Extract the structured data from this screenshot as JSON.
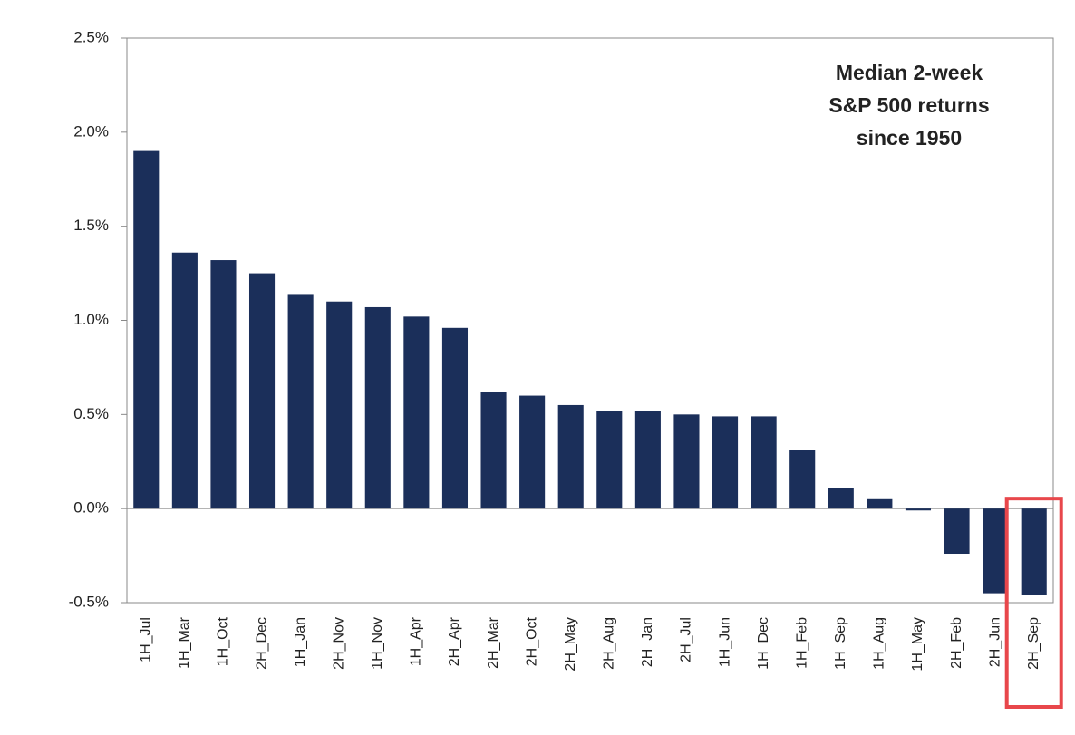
{
  "chart_data": {
    "type": "bar",
    "annotation": [
      "Median 2-week",
      "S&P 500 returns",
      "since 1950"
    ],
    "categories": [
      "1H_Jul",
      "1H_Mar",
      "1H_Oct",
      "2H_Dec",
      "1H_Jan",
      "2H_Nov",
      "1H_Nov",
      "1H_Apr",
      "2H_Apr",
      "2H_Mar",
      "2H_Oct",
      "2H_May",
      "2H_Aug",
      "2H_Jan",
      "2H_Jul",
      "1H_Jun",
      "1H_Dec",
      "1H_Feb",
      "1H_Sep",
      "1H_Aug",
      "1H_May",
      "2H_Feb",
      "2H_Jun",
      "2H_Sep"
    ],
    "values": [
      1.9,
      1.36,
      1.32,
      1.25,
      1.14,
      1.1,
      1.07,
      1.02,
      0.96,
      0.62,
      0.6,
      0.55,
      0.52,
      0.52,
      0.5,
      0.49,
      0.49,
      0.31,
      0.11,
      0.05,
      -0.01,
      -0.24,
      -0.45,
      -0.46
    ],
    "color": "#1b2f5a",
    "ylim": [
      -0.5,
      2.5
    ],
    "yticks": [
      {
        "value": -0.5,
        "label": "-0.5%"
      },
      {
        "value": 0,
        "label": "0.0%"
      },
      {
        "value": 0.5,
        "label": "0.5%"
      },
      {
        "value": 1,
        "label": "1.0%"
      },
      {
        "value": 1.5,
        "label": "1.5%"
      },
      {
        "value": 2,
        "label": "2.0%"
      },
      {
        "value": 2.5,
        "label": "2.5%"
      }
    ],
    "grid": false,
    "highlight": {
      "index": 23,
      "color": "#e8474b"
    }
  }
}
